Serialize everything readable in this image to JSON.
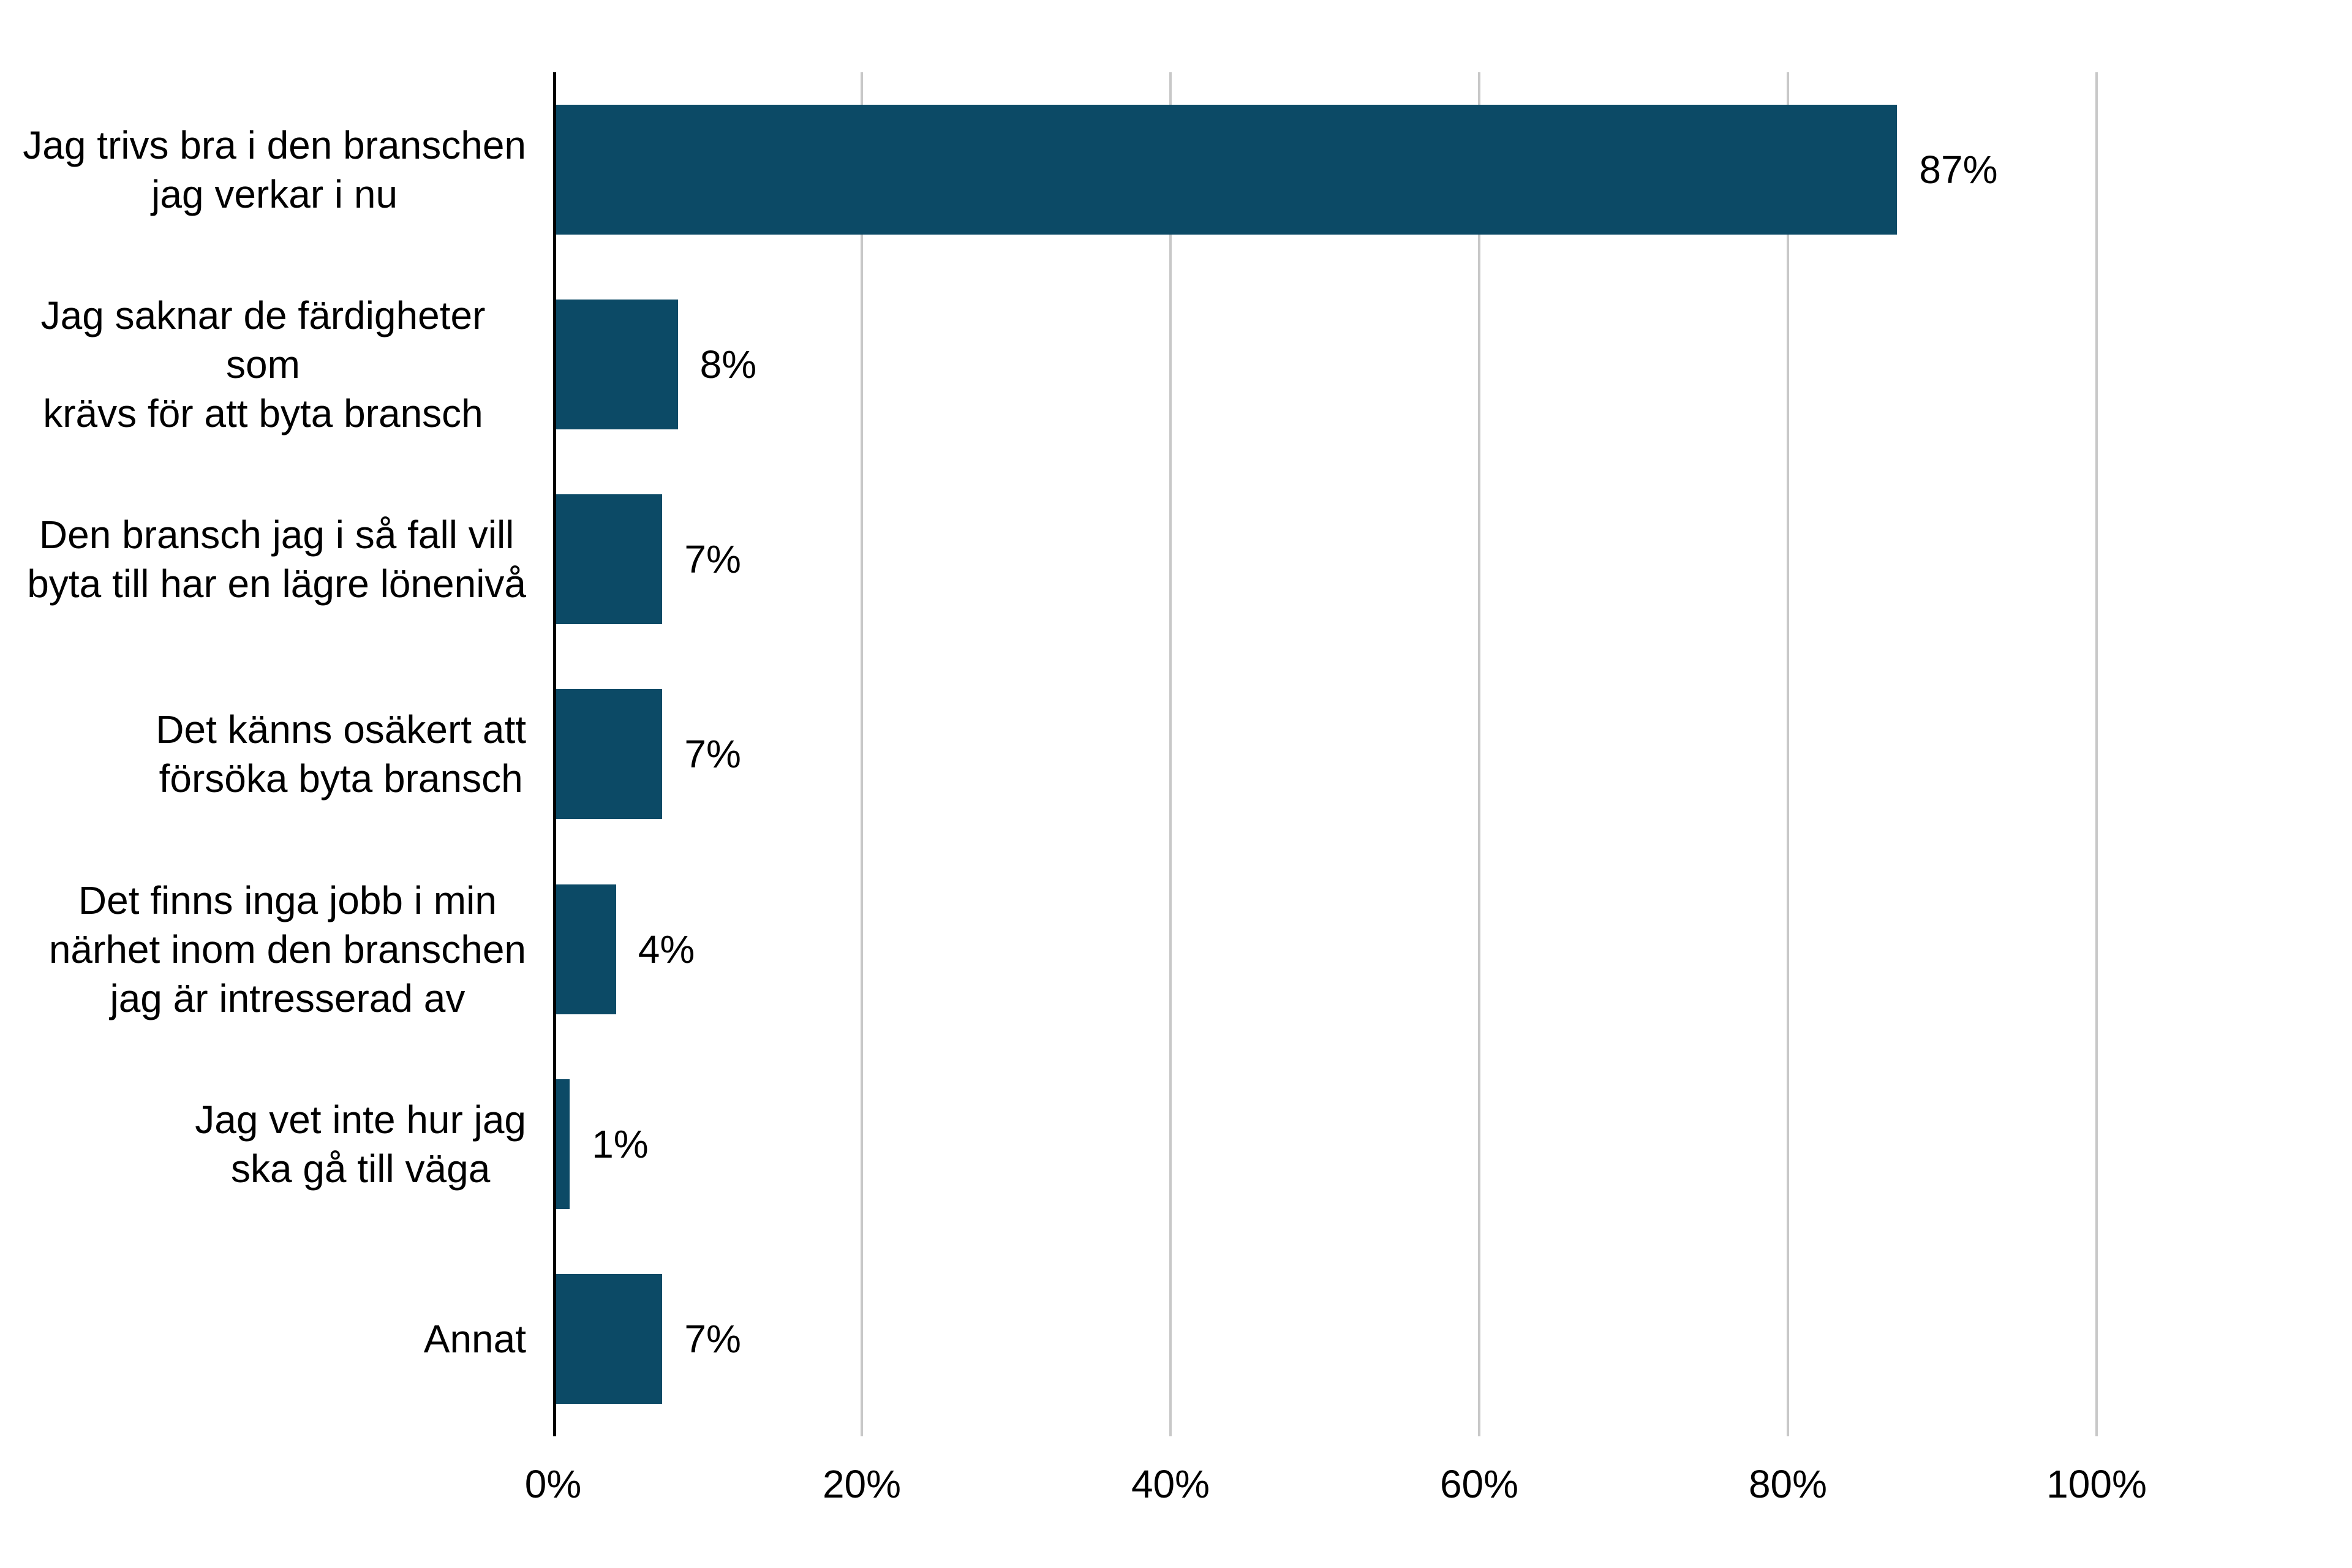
{
  "chart_data": {
    "type": "bar",
    "orientation": "horizontal",
    "categories": [
      "Jag trivs bra i den branschen\njag verkar i nu",
      "Jag saknar de färdigheter som\nkrävs för att byta bransch",
      "Den bransch jag i så fall vill\nbyta till har en lägre lönenivå",
      "Det känns osäkert att\nförsöka byta bransch",
      "Det finns inga jobb i min\nnärhet inom den branschen\njag är intresserad av",
      "Jag vet inte hur jag\nska gå till väga",
      "Annat"
    ],
    "values": [
      87,
      8,
      7,
      7,
      4,
      1,
      7
    ],
    "data_labels": [
      "87%",
      "8%",
      "7%",
      "7%",
      "4%",
      "1%",
      "7%"
    ],
    "x_ticks": [
      {
        "label": "0%",
        "value": 0
      },
      {
        "label": "20%",
        "value": 20
      },
      {
        "label": "40%",
        "value": 40
      },
      {
        "label": "60%",
        "value": 60
      },
      {
        "label": "80%",
        "value": 80
      },
      {
        "label": "100%",
        "value": 100
      }
    ],
    "xlim": [
      0,
      100
    ],
    "grid": "vertical-only",
    "legend": "none",
    "bar_color": "#0c4a66",
    "gridline_color": "#c8c8c8",
    "axis_color": "#000000",
    "text_color": "#000000"
  }
}
